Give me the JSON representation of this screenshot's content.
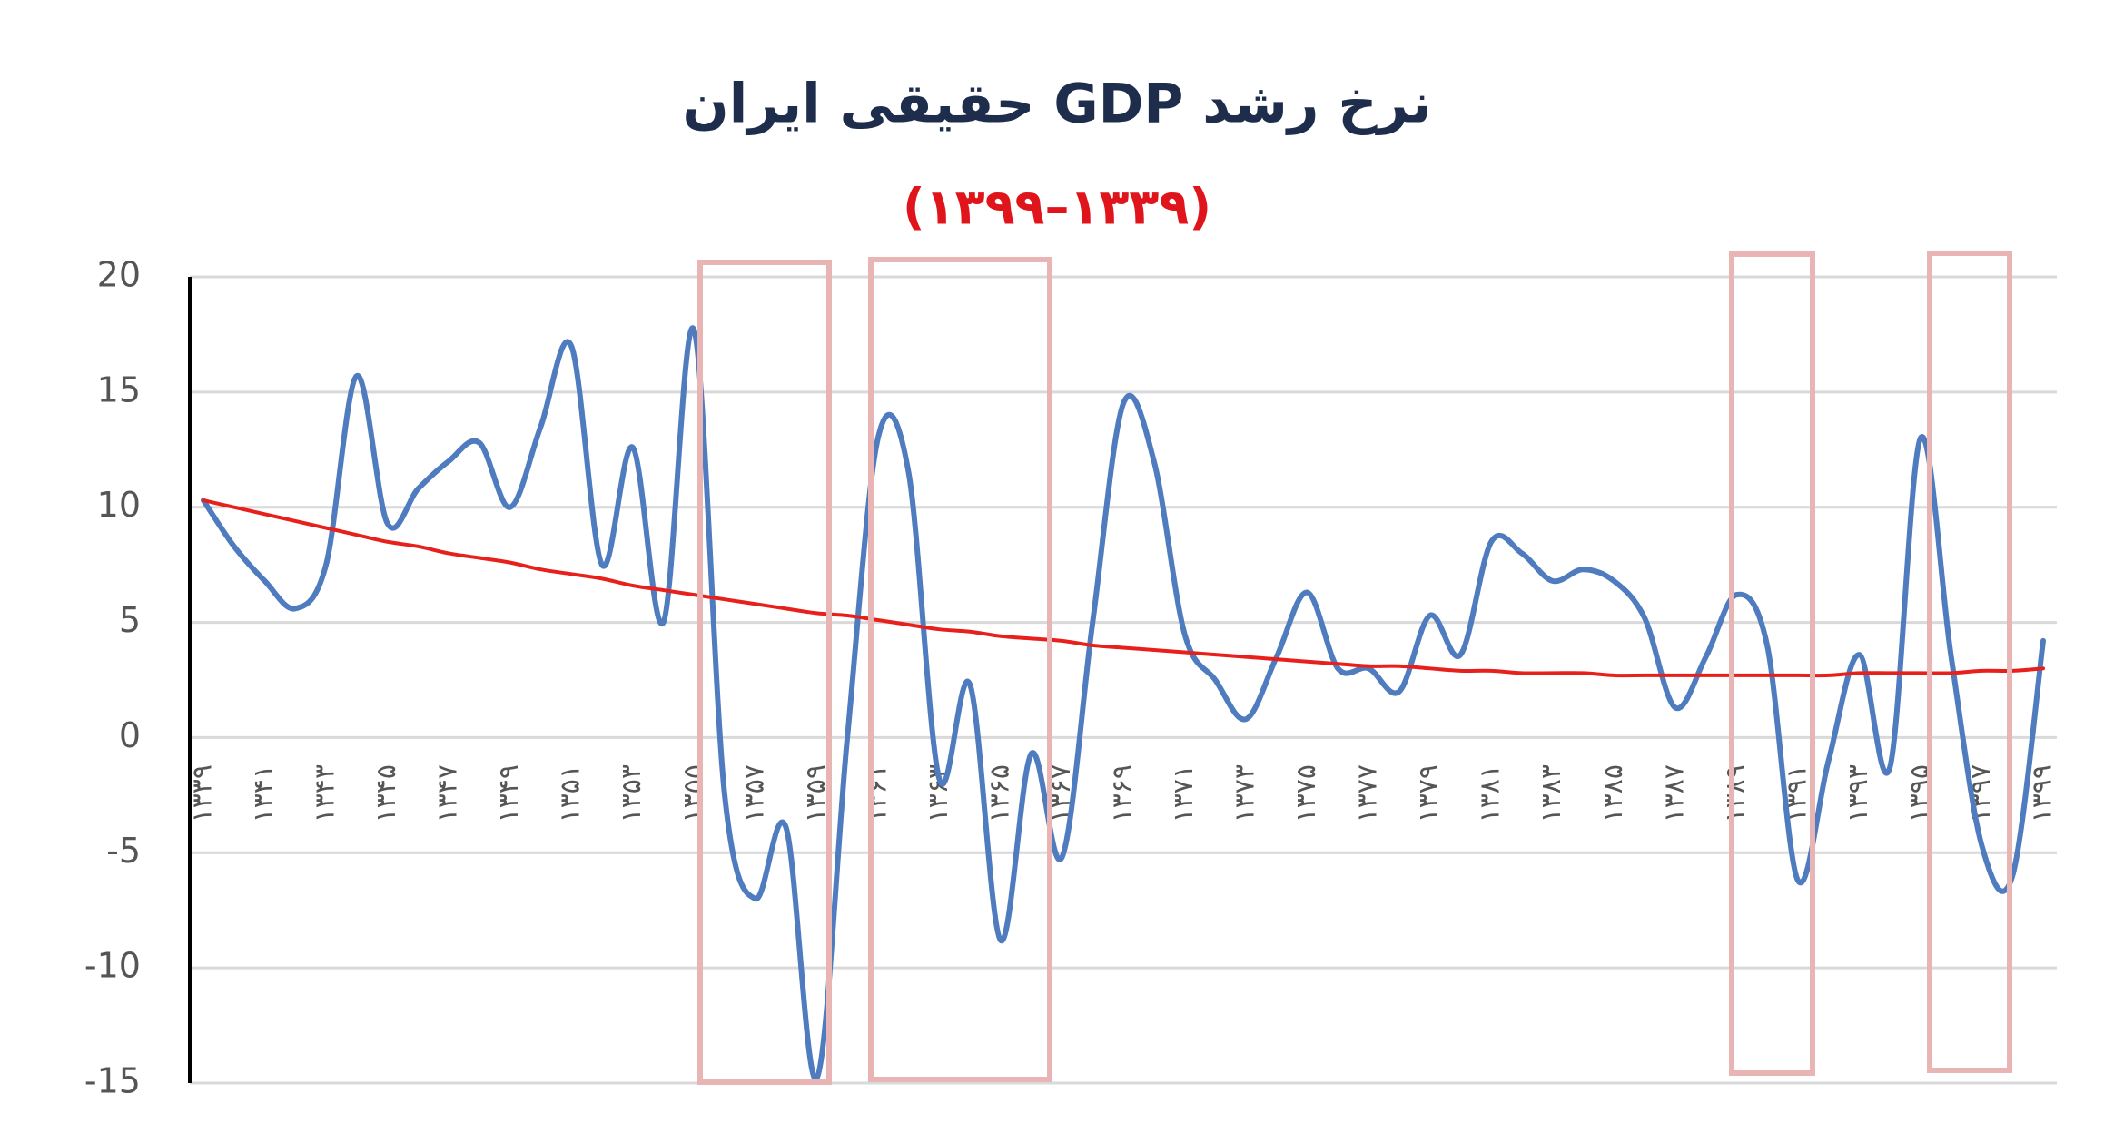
{
  "chart_data": {
    "type": "line",
    "title": "نرخ رشد GDP حقیقی ایران",
    "subtitle": "(۱۳۳۹–۱۳۹۹)",
    "categories": [
      "۱۳۳۹",
      null,
      "۱۳۴۱",
      null,
      "۱۳۴۳",
      null,
      "۱۳۴۵",
      null,
      "۱۳۴۷",
      null,
      "۱۳۴۹",
      null,
      "۱۳۵۱",
      null,
      "۱۳۵۳",
      null,
      "۱۳۵۵",
      null,
      "۱۳۵۷",
      null,
      "۱۳۵۹",
      null,
      "۱۳۶۱",
      null,
      "۱۳۶۳",
      null,
      "۱۳۶۵",
      null,
      "۱۳۶۷",
      null,
      "۱۳۶۹",
      null,
      "۱۳۷۱",
      null,
      "۱۳۷۳",
      null,
      "۱۳۷۵",
      null,
      "۱۳۷۷",
      null,
      "۱۳۷۹",
      null,
      "۱۳۸۱",
      null,
      "۱۳۸۳",
      null,
      "۱۳۸۵",
      null,
      "۱۳۸۷",
      null,
      "۱۳۸۹",
      null,
      "۱۳۹۱",
      null,
      "۱۳۹۳",
      null,
      "۱۳۹۵",
      null,
      "۱۳۹۷",
      null,
      "۱۳۹۹"
    ],
    "series": [
      {
        "color": "#4f7bbf",
        "values": [
          10.3,
          8.3,
          6.8,
          5.6,
          7.5,
          15.7,
          9.3,
          10.8,
          12,
          12.8,
          10,
          13.5,
          17,
          7.5,
          12.6,
          5,
          17.7,
          -2.5,
          -7,
          -3.9,
          -14.8,
          0,
          13,
          11.5,
          -1.8,
          2.3,
          -8.8,
          -0.7,
          -5.2,
          5,
          14.5,
          12,
          4.5,
          2.5,
          0.8,
          3.5,
          6.3,
          3,
          3,
          2,
          5.3,
          3.6,
          8.5,
          8,
          6.8,
          7.3,
          6.8,
          5.2,
          1.3,
          3.5,
          6.2,
          4,
          -6.2,
          -1,
          3.6,
          -1.3,
          13,
          3.5,
          -4.7,
          -6,
          4.2
        ]
      },
      {
        "color": "#e8201c",
        "values": [
          10.3,
          10.0,
          9.7,
          9.4,
          9.1,
          8.8,
          8.5,
          8.3,
          8.0,
          7.8,
          7.6,
          7.3,
          7.1,
          6.9,
          6.6,
          6.4,
          6.2,
          6.0,
          5.8,
          5.6,
          5.4,
          5.3,
          5.1,
          4.9,
          4.7,
          4.6,
          4.4,
          4.3,
          4.2,
          4.0,
          3.9,
          3.8,
          3.7,
          3.6,
          3.5,
          3.4,
          3.3,
          3.2,
          3.1,
          3.1,
          3.0,
          2.9,
          2.9,
          2.8,
          2.8,
          2.8,
          2.7,
          2.7,
          2.7,
          2.7,
          2.7,
          2.7,
          2.7,
          2.7,
          2.8,
          2.8,
          2.8,
          2.8,
          2.9,
          2.9,
          3.0
        ]
      }
    ],
    "ylim": [
      -15,
      20
    ],
    "yticks": [
      -15,
      -10,
      -5,
      0,
      5,
      10,
      15,
      20
    ],
    "grid": true
  }
}
